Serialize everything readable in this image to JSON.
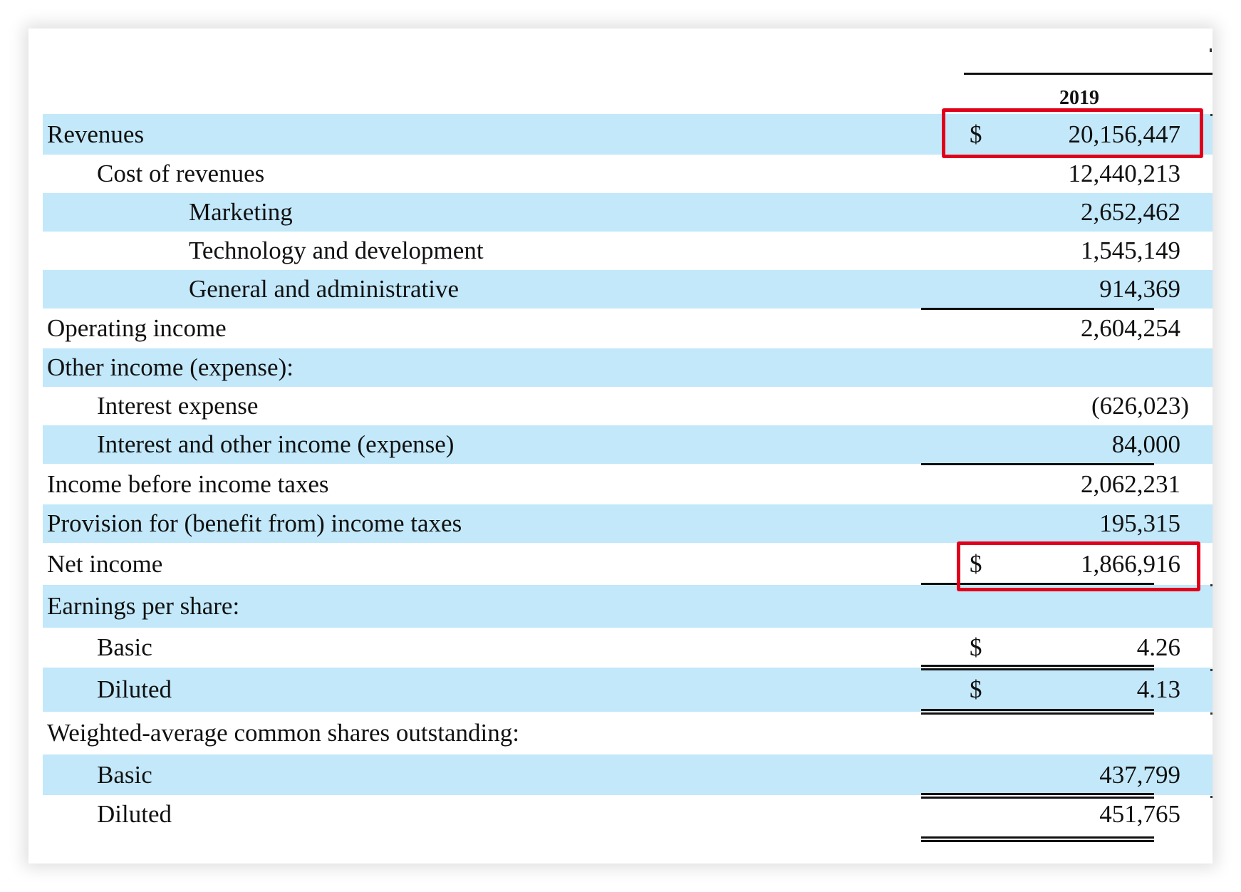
{
  "statement": {
    "year": "2019",
    "rows": [
      {
        "label": "Revenues",
        "dollar": "$",
        "value": "20,156,447"
      },
      {
        "label": "Cost of revenues",
        "value": "12,440,213"
      },
      {
        "label": "Marketing",
        "value": "2,652,462"
      },
      {
        "label": "Technology and development",
        "value": "1,545,149"
      },
      {
        "label": "General and administrative",
        "value": "914,369"
      },
      {
        "label": "Operating income",
        "value": "2,604,254"
      },
      {
        "label": "Other income (expense):"
      },
      {
        "label": "Interest expense",
        "value": "(626,023)"
      },
      {
        "label": "Interest and other income (expense)",
        "value": "84,000"
      },
      {
        "label": "Income before income taxes",
        "value": "2,062,231"
      },
      {
        "label": "Provision for (benefit from) income taxes",
        "value": "195,315"
      },
      {
        "label": "Net income",
        "dollar": "$",
        "value": "1,866,916"
      },
      {
        "label": "Earnings per share:"
      },
      {
        "label": "Basic",
        "dollar": "$",
        "value": "4.26"
      },
      {
        "label": "Diluted",
        "dollar": "$",
        "value": "4.13"
      },
      {
        "label": "Weighted-average common shares outstanding:"
      },
      {
        "label": "Basic",
        "value": "437,799"
      },
      {
        "label": "Diluted",
        "value": "451,765"
      }
    ]
  },
  "highlights": {
    "color": "#e0001b",
    "rows": [
      "Revenues",
      "Net income"
    ]
  },
  "colors": {
    "row_shade": "#c2e8fa"
  }
}
